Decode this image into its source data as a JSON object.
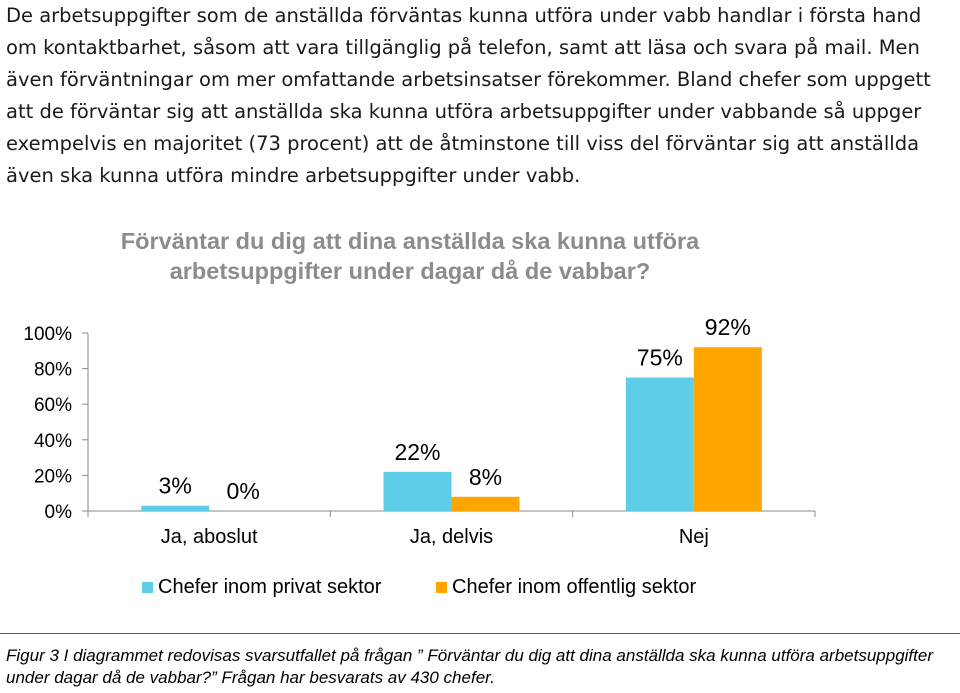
{
  "paragraph": "De arbetsuppgifter som de anställda förväntas kunna utföra under vabb handlar i första hand om kontaktbarhet, såsom att vara tillgänglig på telefon, samt att läsa och svara på mail. Men även förväntningar om mer omfattande arbetsinsatser förekommer. Bland chefer som uppgett att de förväntar sig att anställda ska kunna utföra arbetsuppgifter under vabbande så uppger exempelvis en majoritet (73 procent) att de åtminstone till viss del förväntar sig att anställda även ska kunna utföra mindre arbetsuppgifter under vabb.",
  "chart_data": {
    "type": "bar",
    "title": "Förväntar du dig att dina anställda ska kunna utföra arbetsuppgifter under dagar då de vabbar?",
    "categories": [
      "Ja, aboslut",
      "Ja, delvis",
      "Nej"
    ],
    "series": [
      {
        "name": "Chefer inom privat sektor",
        "values": [
          3,
          22,
          75
        ],
        "color": "#5ecde8"
      },
      {
        "name": "Chefer inom offentlig sektor",
        "values": [
          0,
          8,
          92
        ],
        "color": "#ffa500"
      }
    ],
    "data_labels": [
      [
        "3%",
        "22%",
        "75%"
      ],
      [
        "0%",
        "8%",
        "92%"
      ]
    ],
    "y_ticks": [
      "0%",
      "20%",
      "40%",
      "60%",
      "80%",
      "100%"
    ],
    "ylim": [
      0,
      100
    ],
    "grid": false,
    "legend_position": "bottom"
  },
  "caption": "Figur 3 I diagrammet redovisas svarsutfallet på frågan ” Förväntar du dig att dina anställda ska kunna utföra arbetsuppgifter under dagar då de vabbar?” Frågan har besvarats av 430 chefer."
}
